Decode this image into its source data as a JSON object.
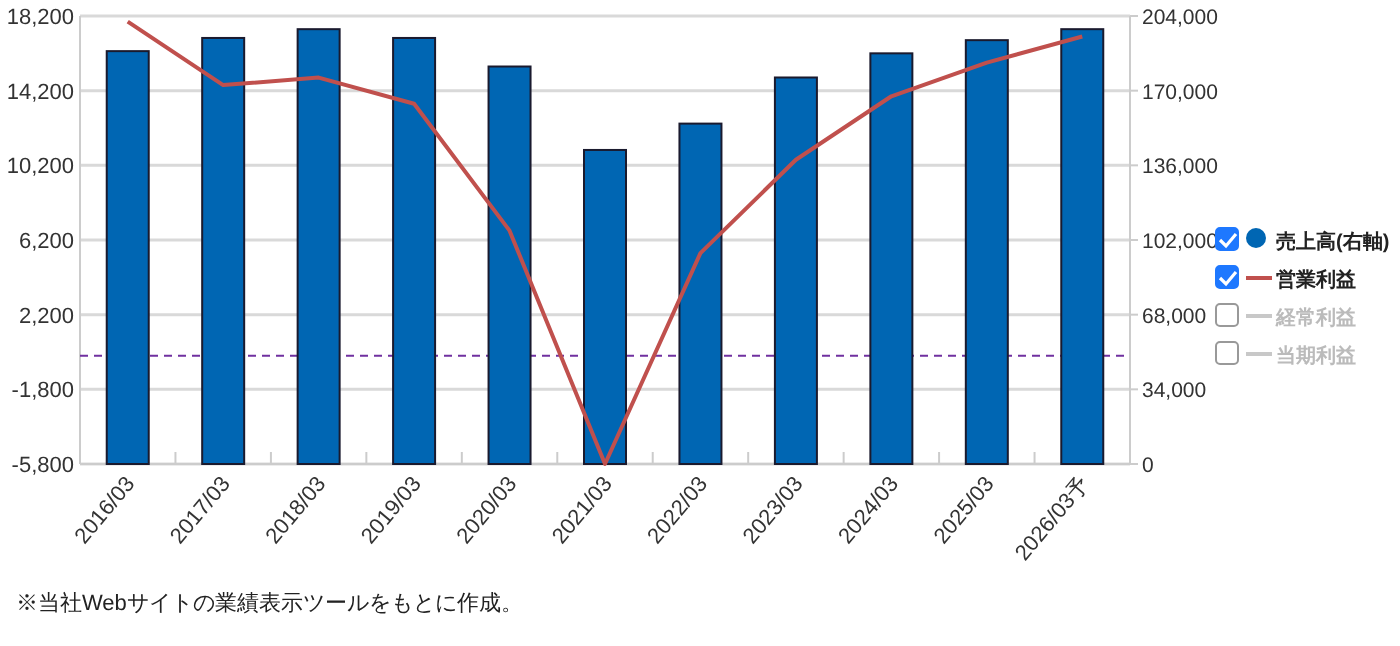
{
  "chart_data": {
    "type": "bar",
    "categories": [
      "2016/03",
      "2017/03",
      "2018/03",
      "2019/03",
      "2020/03",
      "2021/03",
      "2022/03",
      "2023/03",
      "2024/03",
      "2025/03",
      "2026/03予"
    ],
    "series": [
      {
        "name": "売上高(右軸)",
        "axis": "y2",
        "color": "#0066b3",
        "values": [
          188000,
          194000,
          198000,
          194000,
          181000,
          143000,
          155000,
          176000,
          187000,
          193000,
          198000
        ]
      },
      {
        "name": "営業利益",
        "type": "line",
        "color": "#c0504d",
        "values": [
          17900,
          14500,
          14900,
          13500,
          6700,
          -5800,
          5500,
          10500,
          13900,
          15700,
          17100
        ]
      },
      {
        "name": "経常利益",
        "type": "line",
        "color": "#c8c8c8",
        "values": [
          null,
          null,
          null,
          null,
          null,
          null,
          null,
          null,
          null,
          null,
          null
        ]
      },
      {
        "name": "当期利益",
        "type": "line",
        "color": "#c8c8c8",
        "values": [
          null,
          null,
          null,
          null,
          null,
          null,
          null,
          null,
          null,
          null,
          null
        ]
      }
    ],
    "ylim": [
      -5800,
      18200
    ],
    "yticks": [
      {
        "value": -5800,
        "label": "-5,800"
      },
      {
        "value": -1800,
        "label": "-1,800"
      },
      {
        "value": 2200,
        "label": "2,200"
      },
      {
        "value": 6200,
        "label": "6,200"
      },
      {
        "value": 10200,
        "label": "10,200"
      },
      {
        "value": 14200,
        "label": "14,200"
      },
      {
        "value": 18200,
        "label": "18,200"
      }
    ],
    "y2lim": [
      0,
      204000
    ],
    "y2ticks": [
      0,
      {
        "value": 34000,
        "label": "34,000"
      },
      {
        "value": 68000,
        "label": "68,000"
      },
      {
        "value": 102000,
        "label": "102,000"
      },
      {
        "value": 136000,
        "label": "136,000"
      },
      {
        "value": 170000,
        "label": "170,000"
      },
      {
        "value": 204000,
        "label": "204,000"
      }
    ],
    "grid": "y",
    "legend": "right",
    "ref_lines": [
      {
        "axis": "y",
        "value": 0,
        "color": "#7030a0",
        "line_style": "dashed"
      }
    ],
    "annotations": [
      "※当社Webサイトの業績表示ツールをもとに作成。"
    ]
  }
}
